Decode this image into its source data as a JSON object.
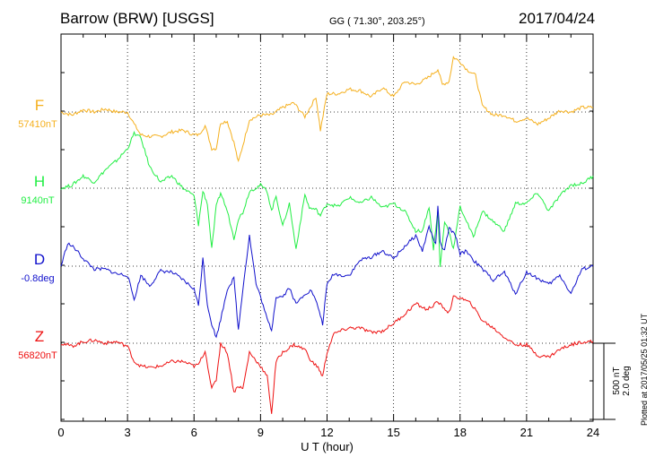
{
  "header": {
    "title": "Barrow (BRW)  [USGS]",
    "coords": "GG ( 71.30°, 203.25°)",
    "date": "2017/04/24"
  },
  "plotted_note": "Plotted at 2017/05/25 01:32 UT",
  "scale_bar": {
    "label_nt": "500 nT",
    "label_deg": "2.0 deg"
  },
  "chart_data": {
    "type": "line",
    "xlabel": "U T (hour)",
    "ylabel": "",
    "xlim": [
      0,
      24
    ],
    "x_ticks": [
      "0",
      "3",
      "6",
      "9",
      "12",
      "15",
      "18",
      "21",
      "24"
    ],
    "grid": true,
    "units_note": "trace values are deviations from the baseline, in nT (D in nT-equivalent of the 500 nT / 2.0 deg scale bar)",
    "series": [
      {
        "name": "F",
        "baseline_label": "57410nT",
        "color": "#f5b01e",
        "x": [
          0,
          0.5,
          1,
          1.5,
          2,
          2.5,
          3,
          3.3,
          3.6,
          4,
          4.5,
          5,
          5.5,
          6,
          6.2,
          6.5,
          6.8,
          7,
          7.2,
          7.5,
          7.8,
          8,
          8.2,
          8.5,
          9,
          9.5,
          10,
          10.5,
          11,
          11.2,
          11.5,
          11.7,
          12,
          12.5,
          13,
          13.5,
          14,
          14.5,
          15,
          15.5,
          16,
          16.5,
          17,
          17.2,
          17.5,
          17.7,
          18,
          18.3,
          18.7,
          19,
          19.5,
          20,
          20.5,
          21,
          21.5,
          22,
          22.5,
          23,
          23.5,
          24
        ],
        "y": [
          0,
          -20,
          15,
          0,
          20,
          0,
          0,
          -80,
          -150,
          -160,
          -160,
          -130,
          -120,
          -150,
          -150,
          -90,
          -240,
          -240,
          -70,
          -60,
          -200,
          -330,
          -220,
          -50,
          -20,
          -20,
          30,
          60,
          -30,
          20,
          100,
          -120,
          120,
          120,
          150,
          140,
          100,
          160,
          100,
          200,
          180,
          220,
          280,
          180,
          200,
          360,
          330,
          280,
          240,
          40,
          -20,
          -20,
          -60,
          -40,
          -80,
          -40,
          10,
          0,
          30,
          30
        ]
      },
      {
        "name": "H",
        "baseline_label": "9140nT",
        "color": "#22ee44",
        "x": [
          0,
          0.5,
          1,
          1.5,
          2,
          2.5,
          3,
          3.3,
          3.6,
          4,
          4.5,
          5,
          5.5,
          6,
          6.2,
          6.4,
          6.6,
          6.8,
          7,
          7.2,
          7.5,
          7.8,
          8,
          8.2,
          8.5,
          9,
          9.3,
          9.5,
          9.7,
          10,
          10.3,
          10.6,
          11,
          11.2,
          11.5,
          11.7,
          12,
          12.5,
          13,
          13.5,
          14,
          14.5,
          15,
          15.5,
          16,
          16.3,
          16.6,
          16.8,
          17,
          17.1,
          17.3,
          17.5,
          17.7,
          18,
          18.3,
          18.6,
          19,
          19.5,
          20,
          20.5,
          21,
          21.5,
          22,
          22.5,
          23,
          23.5,
          24
        ],
        "y": [
          0,
          20,
          80,
          40,
          120,
          180,
          260,
          360,
          330,
          140,
          40,
          80,
          0,
          -50,
          -240,
          -20,
          -100,
          -400,
          -120,
          -30,
          -150,
          -330,
          -200,
          -160,
          -20,
          20,
          -20,
          -150,
          -50,
          -250,
          -100,
          -400,
          -40,
          -130,
          -140,
          -180,
          -100,
          -120,
          -60,
          -100,
          -60,
          -130,
          -100,
          -150,
          -280,
          -280,
          -120,
          -400,
          -150,
          -520,
          -220,
          -280,
          -400,
          -120,
          -220,
          -320,
          -150,
          -220,
          -280,
          -100,
          -100,
          -30,
          -150,
          -50,
          20,
          30,
          80
        ]
      },
      {
        "name": "D",
        "baseline_label": "-0.8deg",
        "color": "#1111cc",
        "x": [
          0,
          0.3,
          0.6,
          1,
          1.5,
          2,
          2.5,
          3,
          3.3,
          3.6,
          4,
          4.5,
          5,
          5.5,
          6,
          6.2,
          6.4,
          6.6,
          6.8,
          7,
          7.2,
          7.5,
          7.8,
          8,
          8.2,
          8.5,
          8.8,
          9,
          9.3,
          9.5,
          9.7,
          10,
          10.3,
          10.6,
          11,
          11.3,
          11.6,
          11.8,
          12,
          12.3,
          12.6,
          13,
          13.5,
          14,
          14.5,
          15,
          15.5,
          16,
          16.3,
          16.6,
          16.9,
          17,
          17.1,
          17.3,
          17.5,
          17.8,
          18,
          18.3,
          18.6,
          19,
          19.5,
          20,
          20.5,
          21,
          21.5,
          22,
          22.5,
          23,
          23.5,
          24
        ],
        "y": [
          0,
          150,
          120,
          50,
          -20,
          -20,
          -50,
          -60,
          -220,
          -60,
          -130,
          -30,
          -40,
          -90,
          -150,
          -260,
          50,
          -250,
          -380,
          -470,
          -350,
          -150,
          -80,
          -420,
          -150,
          200,
          -120,
          -200,
          -350,
          -420,
          -200,
          -200,
          -140,
          -250,
          -180,
          -160,
          -270,
          -380,
          -120,
          -50,
          -60,
          -60,
          40,
          60,
          100,
          50,
          130,
          200,
          100,
          260,
          140,
          400,
          150,
          100,
          250,
          200,
          80,
          100,
          40,
          -20,
          -90,
          -40,
          -180,
          -40,
          -80,
          -120,
          -60,
          -180,
          -20,
          0
        ]
      },
      {
        "name": "Z",
        "baseline_label": "56820nT",
        "color": "#ee1111",
        "x": [
          0,
          0.5,
          1,
          1.5,
          2,
          2.5,
          3,
          3.3,
          3.6,
          4,
          4.5,
          5,
          5.5,
          6,
          6.2,
          6.5,
          6.8,
          7,
          7.2,
          7.5,
          7.8,
          8,
          8.2,
          8.5,
          9,
          9.3,
          9.5,
          9.7,
          10,
          10.5,
          11,
          11.3,
          11.6,
          11.8,
          12,
          12.3,
          12.6,
          13,
          13.5,
          14,
          14.5,
          15,
          15.5,
          16,
          16.5,
          17,
          17.5,
          17.7,
          18,
          18.5,
          19,
          19.5,
          20,
          20.5,
          21,
          21.5,
          22,
          22.5,
          23,
          23.5,
          24
        ],
        "y": [
          0,
          -20,
          10,
          20,
          0,
          10,
          -20,
          -120,
          -150,
          -160,
          -150,
          -120,
          -120,
          -150,
          -140,
          -50,
          -300,
          -240,
          0,
          -60,
          -320,
          -280,
          -300,
          -60,
          -150,
          -220,
          -460,
          -120,
          -60,
          -10,
          -40,
          -120,
          -160,
          -220,
          -60,
          60,
          80,
          100,
          100,
          70,
          80,
          130,
          190,
          260,
          220,
          270,
          200,
          300,
          300,
          260,
          150,
          100,
          40,
          -10,
          -10,
          -80,
          -90,
          -40,
          -10,
          10,
          10
        ]
      }
    ]
  }
}
